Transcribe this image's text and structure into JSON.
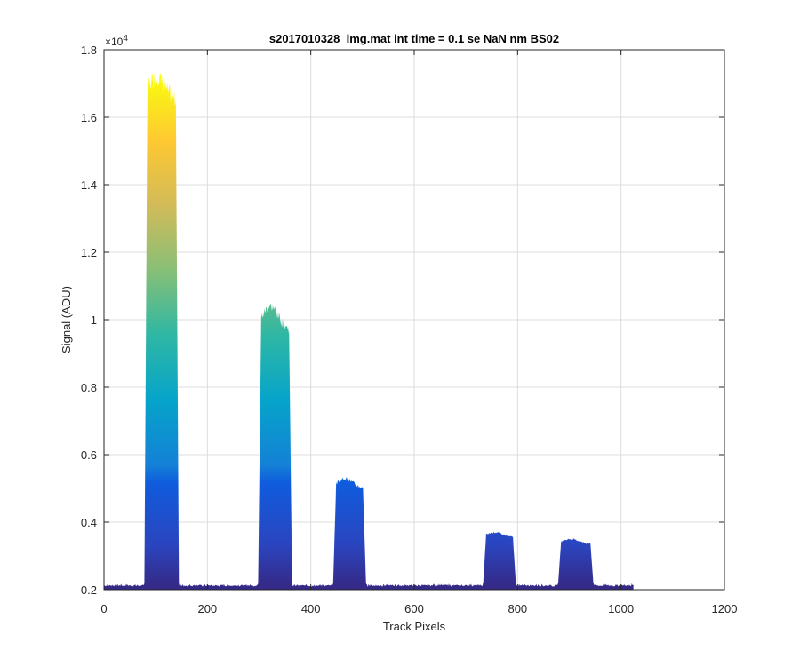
{
  "chart_data": {
    "type": "area",
    "title": "s2017010328_img.mat int time = 0.1 se  NaN nm BS02",
    "xlabel": "Track Pixels",
    "ylabel": "Signal (ADU)",
    "xlim": [
      0,
      1200
    ],
    "ylim": [
      2000,
      18000
    ],
    "y_exponent_label": "×10",
    "y_exponent_power": "4",
    "x_ticks": [
      0,
      200,
      400,
      600,
      800,
      1000,
      1200
    ],
    "x_tick_labels": [
      "0",
      "200",
      "400",
      "600",
      "800",
      "1000",
      "1200"
    ],
    "y_ticks": [
      2000,
      4000,
      6000,
      8000,
      10000,
      12000,
      14000,
      16000,
      18000
    ],
    "y_tick_labels": [
      "0.2",
      "0.4",
      "0.6",
      "0.8",
      "1",
      "1.2",
      "1.4",
      "1.6",
      "1.8"
    ],
    "grid": true,
    "colormap": "parula",
    "baseline": 2100,
    "data_x_range": [
      0,
      1024
    ],
    "peaks": [
      {
        "x_start": 80,
        "x_end": 143,
        "peak": 17200,
        "top": 16500
      },
      {
        "x_start": 300,
        "x_end": 362,
        "peak": 10400,
        "top": 9700
      },
      {
        "x_start": 445,
        "x_end": 505,
        "peak": 5300,
        "top": 5000
      },
      {
        "x_start": 735,
        "x_end": 795,
        "peak": 3700,
        "top": 3550
      },
      {
        "x_start": 880,
        "x_end": 945,
        "peak": 3500,
        "top": 3350
      }
    ],
    "band_levels": [
      2100,
      5700,
      17200
    ],
    "band_colors": [
      "#352A87",
      "#0F5CDD",
      "#1481D6",
      "#06A4CA",
      "#2EB7A4",
      "#87BF77",
      "#D1BB59",
      "#FEC832",
      "#F9FB0E"
    ]
  }
}
